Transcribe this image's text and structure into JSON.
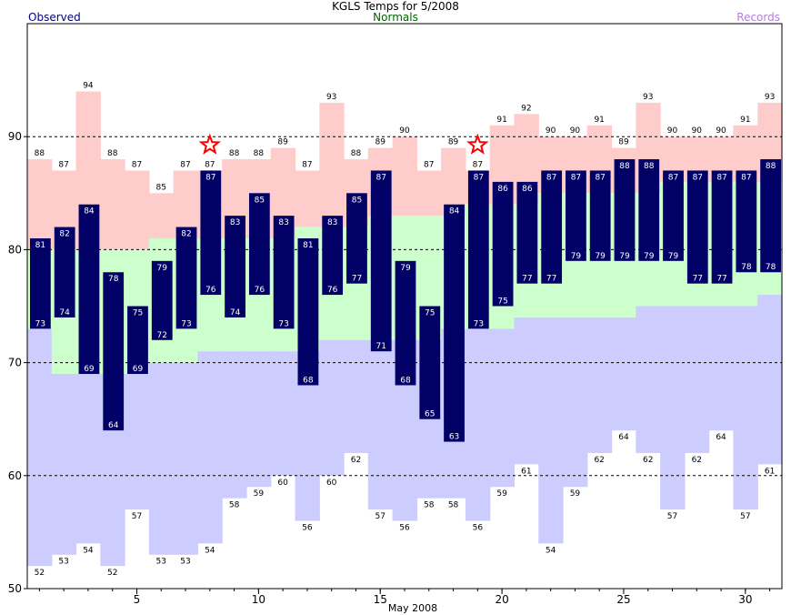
{
  "header": {
    "title": "KGLS Temps for 5/2008",
    "observed_label": "Observed",
    "normals_label": "Normals",
    "records_label": "Records"
  },
  "colors": {
    "observed": "#000066",
    "record_high_band": "#ffcccc",
    "normal_band": "#ccffcc",
    "record_low_band": "#ccccff",
    "star": "#ff0000"
  },
  "chart_data": {
    "type": "bar",
    "title": "KGLS Temps for 5/2008",
    "xlabel": "May 2008",
    "ylabel": "",
    "ylim": [
      50,
      100
    ],
    "xlim": [
      1,
      31
    ],
    "yticks": [
      50,
      60,
      70,
      80,
      90
    ],
    "xticks": [
      5,
      10,
      15,
      20,
      25,
      30
    ],
    "grid_lines": [
      60,
      70,
      80,
      90
    ],
    "legend_placement": "top",
    "days": [
      1,
      2,
      3,
      4,
      5,
      6,
      7,
      8,
      9,
      10,
      11,
      12,
      13,
      14,
      15,
      16,
      17,
      18,
      19,
      20,
      21,
      22,
      23,
      24,
      25,
      26,
      27,
      28,
      29,
      30,
      31
    ],
    "series": [
      {
        "name": "Observed",
        "high": [
          81,
          82,
          84,
          78,
          75,
          79,
          82,
          87,
          83,
          85,
          83,
          81,
          83,
          85,
          87,
          79,
          75,
          84,
          87,
          86,
          86,
          87,
          87,
          87,
          88,
          88,
          87,
          87,
          87,
          87,
          88
        ],
        "low": [
          73,
          74,
          69,
          64,
          69,
          72,
          73,
          76,
          74,
          76,
          73,
          68,
          76,
          77,
          71,
          68,
          65,
          63,
          73,
          75,
          77,
          77,
          79,
          79,
          79,
          79,
          79,
          77,
          77,
          78,
          78
        ]
      },
      {
        "name": "Normals",
        "high": [
          80,
          80,
          80,
          80,
          80,
          81,
          81,
          81,
          81,
          81,
          81,
          82,
          82,
          82,
          83,
          83,
          83,
          83,
          84,
          84,
          84,
          85,
          85,
          85,
          85,
          85,
          86,
          86,
          86,
          86,
          86
        ],
        "low": [
          73,
          69,
          69,
          69,
          69,
          70,
          70,
          71,
          71,
          71,
          71,
          71,
          72,
          72,
          72,
          72,
          72,
          73,
          73,
          73,
          74,
          74,
          74,
          74,
          74,
          75,
          75,
          75,
          75,
          75,
          76
        ]
      },
      {
        "name": "Records",
        "high": [
          88,
          87,
          94,
          88,
          87,
          85,
          87,
          87,
          88,
          88,
          89,
          87,
          93,
          88,
          89,
          90,
          87,
          89,
          87,
          91,
          92,
          90,
          90,
          91,
          89,
          93,
          90,
          90,
          90,
          91,
          93
        ],
        "low": [
          52,
          53,
          54,
          52,
          57,
          53,
          53,
          54,
          58,
          59,
          60,
          56,
          60,
          62,
          57,
          56,
          58,
          58,
          56,
          59,
          61,
          54,
          59,
          62,
          64,
          62,
          57,
          62,
          64,
          57,
          61
        ]
      }
    ],
    "record_high_days": [
      8,
      19
    ]
  }
}
